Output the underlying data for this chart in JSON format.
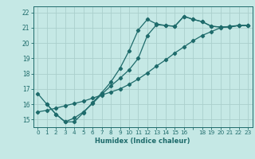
{
  "xlabel": "Humidex (Indice chaleur)",
  "bg_color": "#c5e8e5",
  "grid_color": "#aacfcc",
  "line_color": "#1e6b6b",
  "ylim": [
    14.5,
    22.4
  ],
  "xlim": [
    -0.5,
    23.5
  ],
  "yticks": [
    15,
    16,
    17,
    18,
    19,
    20,
    21,
    22
  ],
  "xticks": [
    0,
    1,
    2,
    3,
    4,
    5,
    6,
    7,
    8,
    9,
    10,
    11,
    12,
    13,
    14,
    15,
    16,
    17,
    18,
    19,
    20,
    21,
    22,
    23
  ],
  "xtick_labels": [
    "0",
    "1",
    "2",
    "3",
    "4",
    "5",
    "6",
    "7",
    "8",
    "9",
    "10",
    "11",
    "12",
    "13",
    "14",
    "15",
    "16",
    "",
    "18",
    "19",
    "20",
    "21",
    "22",
    "23"
  ],
  "line1_x": [
    0,
    1,
    2,
    3,
    4,
    5,
    6,
    7,
    8,
    9,
    10,
    11,
    12,
    13,
    14,
    15,
    16,
    17,
    18,
    19,
    20,
    21,
    22,
    23
  ],
  "line1_y": [
    16.7,
    16.0,
    15.35,
    14.85,
    14.85,
    15.45,
    16.1,
    16.75,
    17.45,
    18.35,
    19.5,
    20.85,
    21.55,
    21.25,
    21.15,
    21.1,
    21.75,
    21.55,
    21.4,
    21.1,
    21.05,
    21.05,
    21.15,
    21.15
  ],
  "line2_x": [
    1,
    2,
    3,
    4,
    5,
    6,
    7,
    8,
    9,
    10,
    11,
    12,
    13,
    14,
    15,
    16,
    17,
    18,
    19,
    20,
    21,
    22,
    23
  ],
  "line2_y": [
    16.0,
    15.35,
    14.85,
    15.1,
    15.5,
    16.05,
    16.65,
    17.2,
    17.7,
    18.25,
    19.0,
    20.5,
    21.2,
    21.15,
    21.1,
    21.75,
    21.55,
    21.4,
    21.1,
    21.05,
    21.05,
    21.15,
    21.15
  ],
  "line3_x": [
    0,
    1,
    2,
    3,
    4,
    5,
    6,
    7,
    8,
    9,
    10,
    11,
    12,
    13,
    14,
    15,
    16,
    17,
    18,
    19,
    20,
    21,
    22,
    23
  ],
  "line3_y": [
    15.5,
    15.6,
    15.75,
    15.9,
    16.05,
    16.2,
    16.4,
    16.6,
    16.8,
    17.0,
    17.3,
    17.65,
    18.05,
    18.5,
    18.9,
    19.35,
    19.75,
    20.15,
    20.5,
    20.75,
    21.0,
    21.1,
    21.15,
    21.15
  ]
}
